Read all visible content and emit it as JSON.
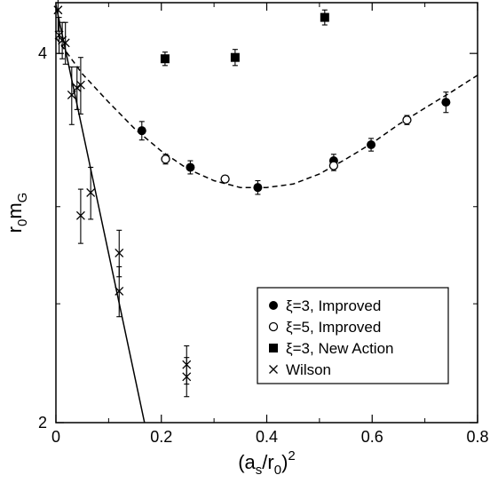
{
  "chart_data": {
    "type": "scatter",
    "title": "",
    "xlabel": {
      "base": "(a",
      "sub1": "s",
      "mid": "/r",
      "sub2": "0",
      "close": ")",
      "sup": "2"
    },
    "ylabel": {
      "base": "r",
      "sub1": "0",
      "mid": "m",
      "sub2": "G"
    },
    "xlim": [
      0,
      0.8
    ],
    "ylim": [
      2,
      4.4
    ],
    "y_scale": "log",
    "grid": false,
    "legend_position": "lower-right",
    "x_ticks": [
      {
        "value": 0,
        "label": "0"
      },
      {
        "value": 0.2,
        "label": "0.2"
      },
      {
        "value": 0.4,
        "label": "0.4"
      },
      {
        "value": 0.6,
        "label": "0.6"
      },
      {
        "value": 0.8,
        "label": "0.8"
      }
    ],
    "y_ticks": [
      {
        "value": 2,
        "label": "2"
      },
      {
        "value": 4,
        "label": "4"
      }
    ],
    "y_minor_ticks": [
      2.5,
      3
    ],
    "series": [
      {
        "name": "ξ=3, Improved",
        "marker": "filled-circle",
        "points": [
          {
            "x": 0.163,
            "y": 3.46,
            "err": 0.06
          },
          {
            "x": 0.255,
            "y": 3.23,
            "err": 0.04
          },
          {
            "x": 0.383,
            "y": 3.11,
            "err": 0.04
          },
          {
            "x": 0.527,
            "y": 3.27,
            "err": 0.04
          },
          {
            "x": 0.598,
            "y": 3.37,
            "err": 0.04
          },
          {
            "x": 0.74,
            "y": 3.65,
            "err": 0.07
          }
        ]
      },
      {
        "name": "ξ=5, Improved",
        "marker": "open-circle",
        "points": [
          {
            "x": 0.208,
            "y": 3.28,
            "err": 0.03
          },
          {
            "x": 0.321,
            "y": 3.16,
            "err": 0.02
          },
          {
            "x": 0.527,
            "y": 3.24,
            "err": 0.03
          },
          {
            "x": 0.666,
            "y": 3.53,
            "err": 0.03
          }
        ]
      },
      {
        "name": "ξ=3, New Action",
        "marker": "filled-square",
        "points": [
          {
            "x": 0.207,
            "y": 3.96,
            "err": 0.05
          },
          {
            "x": 0.34,
            "y": 3.97,
            "err": 0.06
          },
          {
            "x": 0.51,
            "y": 4.28,
            "err": 0.06
          }
        ]
      },
      {
        "name": "Wilson",
        "marker": "cross",
        "points": [
          {
            "x": 0.004,
            "y": 4.34,
            "err": 0.17
          },
          {
            "x": 0.006,
            "y": 4.14,
            "err": 0.14
          },
          {
            "x": 0.012,
            "y": 4.1,
            "err": 0.14
          },
          {
            "x": 0.018,
            "y": 4.08,
            "err": 0.16
          },
          {
            "x": 0.03,
            "y": 3.7,
            "err": 0.2
          },
          {
            "x": 0.04,
            "y": 3.75,
            "err": 0.15
          },
          {
            "x": 0.047,
            "y": 3.77,
            "err": 0.2
          },
          {
            "x": 0.047,
            "y": 2.95,
            "err": 0.15
          },
          {
            "x": 0.066,
            "y": 3.08,
            "err": 0.15
          },
          {
            "x": 0.12,
            "y": 2.75,
            "err": 0.12
          },
          {
            "x": 0.12,
            "y": 2.56,
            "err": 0.12
          },
          {
            "x": 0.248,
            "y": 2.23,
            "err": 0.08
          },
          {
            "x": 0.248,
            "y": 2.18,
            "err": 0.08
          }
        ]
      }
    ],
    "fits": [
      {
        "for": "ξ=3, Improved / ξ=5, Improved",
        "style": "dashed",
        "points": [
          [
            0.0,
            4.12
          ],
          [
            0.05,
            3.85
          ],
          [
            0.1,
            3.65
          ],
          [
            0.15,
            3.47
          ],
          [
            0.2,
            3.33
          ],
          [
            0.25,
            3.22
          ],
          [
            0.3,
            3.15
          ],
          [
            0.35,
            3.11
          ],
          [
            0.4,
            3.11
          ],
          [
            0.45,
            3.13
          ],
          [
            0.5,
            3.19
          ],
          [
            0.55,
            3.28
          ],
          [
            0.6,
            3.38
          ],
          [
            0.65,
            3.5
          ],
          [
            0.7,
            3.61
          ],
          [
            0.75,
            3.72
          ],
          [
            0.8,
            3.84
          ]
        ]
      },
      {
        "for": "Wilson",
        "style": "solid",
        "points": [
          [
            0.0,
            4.38
          ],
          [
            0.168,
            2.0
          ]
        ]
      }
    ]
  }
}
